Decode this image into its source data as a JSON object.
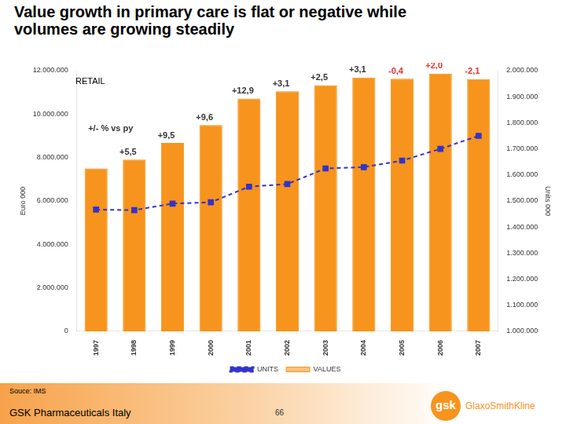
{
  "chart_data": {
    "type": "bar",
    "title": "Value growth in primary care is flat or negative while volumes are growing steadily",
    "subtitle": "RETAIL",
    "note": "+/- % vs py",
    "categories": [
      "1997",
      "1998",
      "1999",
      "2000",
      "2001",
      "2002",
      "2003",
      "2004",
      "2005",
      "2006",
      "2007"
    ],
    "series": [
      {
        "name": "VALUES",
        "type": "bar",
        "color": "#f7941d",
        "values": [
          7500000,
          7910000,
          8670000,
          9500000,
          10720000,
          11050000,
          11330000,
          11680000,
          11630000,
          11860000,
          11610000
        ]
      },
      {
        "name": "UNITS",
        "type": "line",
        "axis": "y2",
        "color": "#3333cc",
        "marker": "square",
        "line_style": "dashed",
        "values": [
          1467000,
          1465000,
          1490000,
          1495000,
          1555000,
          1565000,
          1625000,
          1630000,
          1655000,
          1700000,
          1750000
        ]
      }
    ],
    "annotations": [
      {
        "category": "1998",
        "text": "+5,5",
        "color": "#333333"
      },
      {
        "category": "1999",
        "text": "+9,5",
        "color": "#333333"
      },
      {
        "category": "2000",
        "text": "+9,6",
        "color": "#333333"
      },
      {
        "category": "2001",
        "text": "+12,9",
        "color": "#333333"
      },
      {
        "category": "2002",
        "text": "+3,1",
        "color": "#333333"
      },
      {
        "category": "2003",
        "text": "+2,5",
        "color": "#333333"
      },
      {
        "category": "2004",
        "text": "+3,1",
        "color": "#333333"
      },
      {
        "category": "2005",
        "text": "-0,4",
        "color": "#e8312f"
      },
      {
        "category": "2006",
        "text": "+2,0",
        "color": "#e8312f"
      },
      {
        "category": "2007",
        "text": "-2,1",
        "color": "#e8312f"
      }
    ],
    "y_label": "Euro 000",
    "y2_label": "Units 000",
    "ylim": [
      0,
      12000000
    ],
    "yticks": [
      0,
      {
        "value": 2000000,
        "label": "2.000.000"
      },
      {
        "value": 4000000,
        "label": "4.000.000"
      },
      {
        "value": 6000000,
        "label": "6.000.000"
      },
      {
        "value": 8000000,
        "label": "8.000.000"
      },
      {
        "value": 10000000,
        "label": "10.000.000"
      },
      {
        "value": 12000000,
        "label": "12.000.000"
      }
    ],
    "y2lim": [
      1000000,
      2000000
    ],
    "y2ticks": [
      {
        "value": 1000000,
        "label": "1.000.000"
      },
      {
        "value": 1100000,
        "label": "1.100.000"
      },
      {
        "value": 1200000,
        "label": "1.200.000"
      },
      {
        "value": 1300000,
        "label": "1.300.000"
      },
      {
        "value": 1400000,
        "label": "1.400.000"
      },
      {
        "value": 1500000,
        "label": "1.500.000"
      },
      {
        "value": 1600000,
        "label": "1.600.000"
      },
      {
        "value": 1700000,
        "label": "1.700.000"
      },
      {
        "value": 1800000,
        "label": "1.800.000"
      },
      {
        "value": 1900000,
        "label": "1.900.000"
      },
      {
        "value": 2000000,
        "label": "2.000.000"
      }
    ],
    "grid": false,
    "legend": "bottom",
    "footer": {
      "source": "Souce: IMS",
      "left": "GSK Pharmaceuticals Italy",
      "page": "66",
      "logo": "gsk",
      "company": "GlaxoSmithKline"
    }
  }
}
